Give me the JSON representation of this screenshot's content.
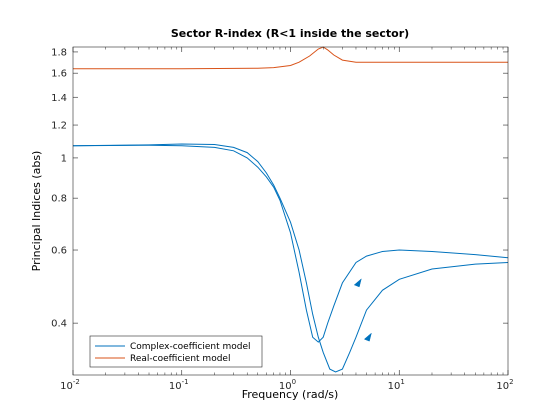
{
  "chart_data": {
    "type": "line",
    "title": "Sector R-index (R<1 inside the sector)",
    "xlabel": "Frequency (rad/s)",
    "ylabel": "Principal Indices (abs)",
    "xscale": "log",
    "yscale": "log",
    "xlim": [
      0.01,
      100
    ],
    "ylim": [
      0.3,
      1.85
    ],
    "grid": false,
    "legend_position": "bottom-left",
    "x_ticks": [
      {
        "value": 0.01,
        "base": "10",
        "exp": "-2"
      },
      {
        "value": 0.1,
        "base": "10",
        "exp": "-1"
      },
      {
        "value": 1,
        "base": "10",
        "exp": "0"
      },
      {
        "value": 10,
        "base": "10",
        "exp": "1"
      },
      {
        "value": 100,
        "base": "10",
        "exp": "2"
      }
    ],
    "y_ticks": [
      {
        "value": 0.4,
        "label": "0.4"
      },
      {
        "value": 0.6,
        "label": "0.6"
      },
      {
        "value": 0.8,
        "label": "0.8"
      },
      {
        "value": 1,
        "label": "1"
      },
      {
        "value": 1.2,
        "label": "1.2"
      },
      {
        "value": 1.4,
        "label": "1.4"
      },
      {
        "value": 1.6,
        "label": "1.6"
      },
      {
        "value": 1.8,
        "label": "1.8"
      }
    ],
    "series": [
      {
        "name": "Complex-coefficient model",
        "color": "#0072BD",
        "lines": [
          {
            "x": [
              0.01,
              0.05,
              0.1,
              0.2,
              0.3,
              0.4,
              0.5,
              0.6,
              0.7,
              0.8,
              1,
              1.2,
              1.4,
              1.6,
              1.8,
              2,
              2.2,
              2.5,
              3,
              4,
              5,
              7,
              10,
              20,
              50,
              100
            ],
            "y": [
              1.07,
              1.073,
              1.07,
              1.06,
              1.04,
              1.0,
              0.95,
              0.9,
              0.85,
              0.79,
              0.66,
              0.53,
              0.43,
              0.37,
              0.36,
              0.37,
              0.4,
              0.44,
              0.5,
              0.56,
              0.58,
              0.595,
              0.6,
              0.595,
              0.585,
              0.575
            ]
          },
          {
            "x": [
              0.01,
              0.05,
              0.1,
              0.2,
              0.3,
              0.4,
              0.5,
              0.6,
              0.7,
              0.8,
              1,
              1.2,
              1.4,
              1.6,
              1.8,
              2,
              2.3,
              2.6,
              3,
              3.5,
              4,
              5,
              7,
              10,
              20,
              50,
              100
            ],
            "y": [
              1.07,
              1.075,
              1.08,
              1.077,
              1.06,
              1.03,
              0.98,
              0.92,
              0.86,
              0.8,
              0.7,
              0.6,
              0.5,
              0.42,
              0.37,
              0.34,
              0.31,
              0.305,
              0.31,
              0.34,
              0.37,
              0.43,
              0.48,
              0.51,
              0.54,
              0.555,
              0.56
            ]
          }
        ]
      },
      {
        "name": "Real-coefficient model",
        "color": "#D95319",
        "lines": [
          {
            "x": [
              0.01,
              0.1,
              0.5,
              0.7,
              1,
              1.2,
              1.5,
              1.8,
              2,
              2.2,
              2.5,
              3,
              4,
              5,
              10,
              100
            ],
            "y": [
              1.64,
              1.64,
              1.645,
              1.65,
              1.67,
              1.7,
              1.76,
              1.83,
              1.85,
              1.82,
              1.77,
              1.72,
              1.7,
              1.7,
              1.7,
              1.7
            ]
          }
        ]
      }
    ],
    "arrows": [
      {
        "x": 4.2,
        "y": 0.5,
        "color": "#0072BD"
      },
      {
        "x": 5.2,
        "y": 0.37,
        "color": "#0072BD"
      }
    ]
  }
}
